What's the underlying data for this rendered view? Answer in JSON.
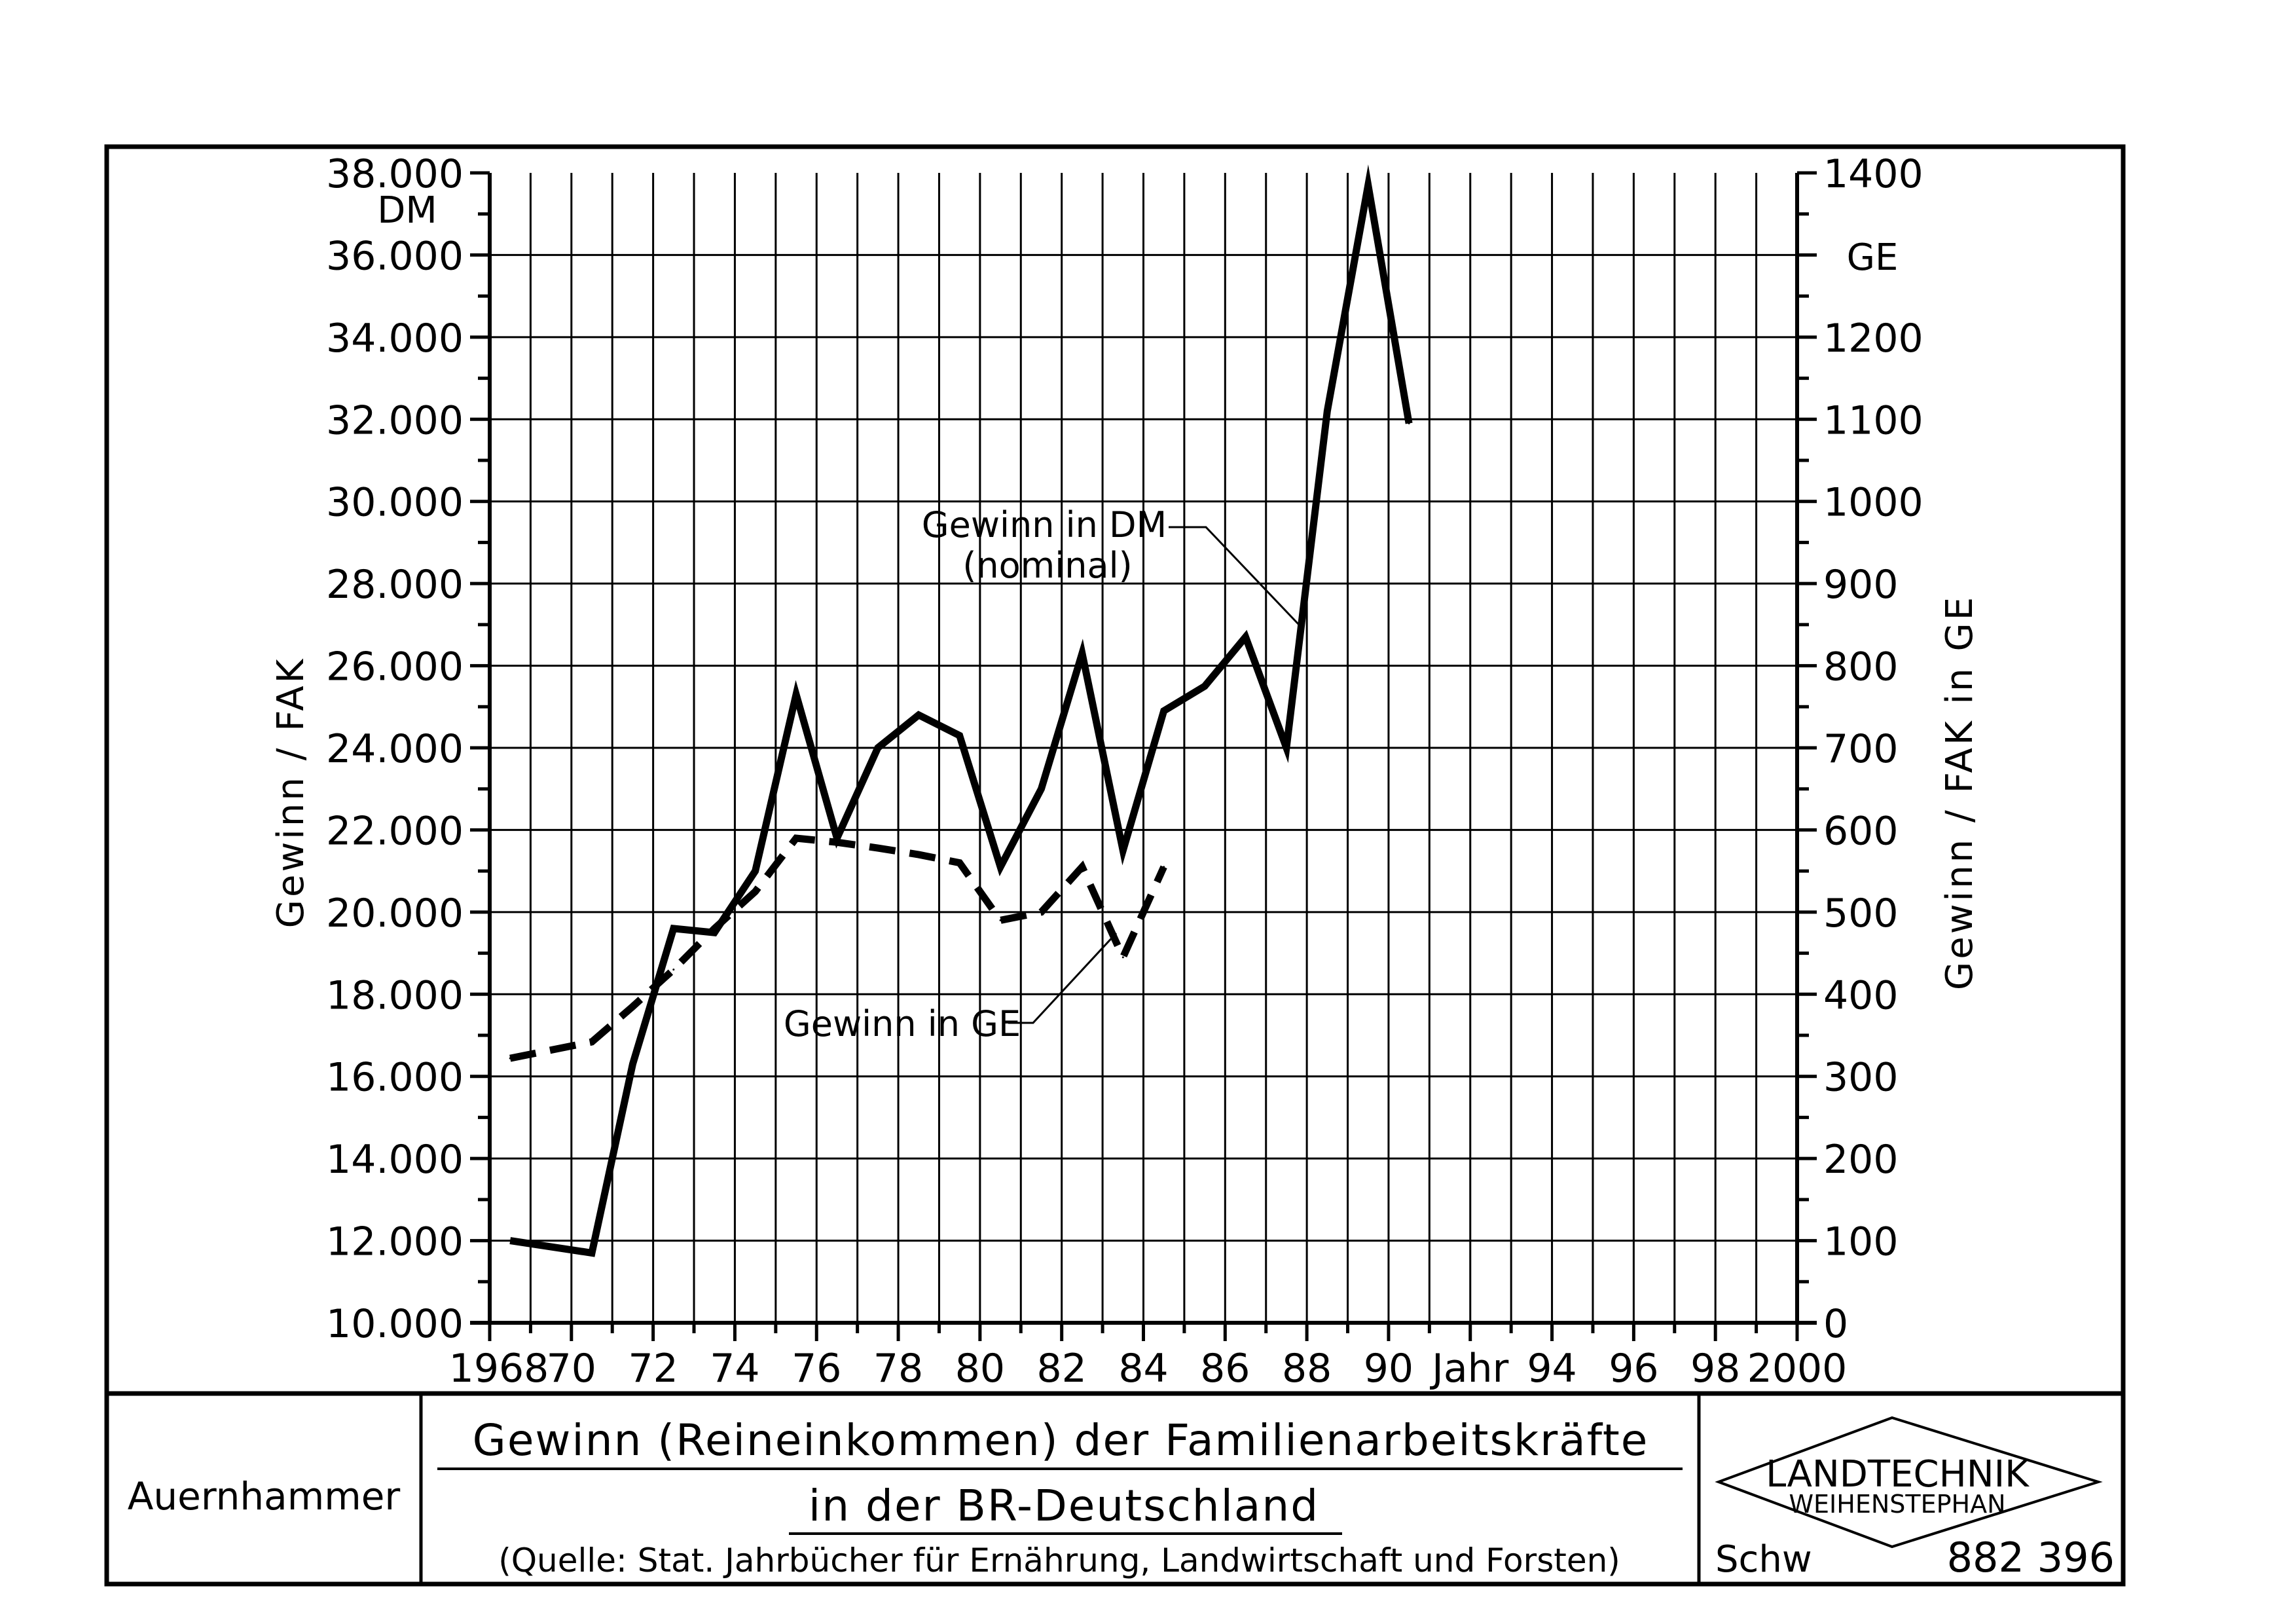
{
  "chart_data": {
    "type": "line",
    "title": "Gewinn (Reineinkommen) der Familienarbeitskräfte",
    "subtitle": "in der BR-Deutschland",
    "source": "(Quelle: Stat. Jahrbücher für Ernährung, Landwirtschaft und Forsten)",
    "xlabel": "Jahr",
    "ylabel": "Gewinn / FAK",
    "ylabel_right": "Gewinn / FAK in GE",
    "y_unit": "DM",
    "y_unit_right": "GE",
    "xlim": [
      1968,
      2000
    ],
    "ylim": [
      10000,
      38000
    ],
    "ylim_right": [
      0,
      1400
    ],
    "grid": true,
    "x_tick_labels": [
      "1968",
      "70",
      "72",
      "74",
      "76",
      "78",
      "80",
      "82",
      "84",
      "86",
      "88",
      "90",
      "Jahr",
      "94",
      "96",
      "98",
      "2000"
    ],
    "y_tick_labels": [
      "10.000",
      "12.000",
      "14.000",
      "16.000",
      "18.000",
      "20.000",
      "22.000",
      "24.000",
      "26.000",
      "28.000",
      "30.000",
      "32.000",
      "34.000",
      "36.000",
      "38.000"
    ],
    "y_tick_labels_right": [
      "0",
      "100",
      "200",
      "300",
      "400",
      "500",
      "600",
      "700",
      "800",
      "900",
      "1000",
      "1100",
      "1200",
      "1300",
      "1400"
    ],
    "series": [
      {
        "name": "Gewinn in DM",
        "name_line2": "(nominal)",
        "axis": "left",
        "style": "solid",
        "x": [
          1968.5,
          1970.5,
          1971.5,
          1972.5,
          1973.5,
          1974.5,
          1975.5,
          1976.5,
          1977.5,
          1978.5,
          1979.5,
          1980.5,
          1981.5,
          1982.5,
          1983.5,
          1984.5,
          1985.5,
          1986.5,
          1987.5,
          1988.5,
          1989.5,
          1990.5
        ],
        "y": [
          12000,
          11700,
          16300,
          19600,
          19500,
          21000,
          25300,
          21800,
          24000,
          24800,
          24300,
          21100,
          23000,
          26300,
          21500,
          24900,
          25500,
          26700,
          24000,
          32200,
          37700,
          31900
        ]
      },
      {
        "name": "Gewinn in GE",
        "axis": "right",
        "style": "dashed",
        "x": [
          1968.5,
          1970.5,
          1971.5,
          1972.5,
          1973.5,
          1974.5,
          1975.5,
          1976.5,
          1977.5,
          1978.5,
          1979.5,
          1980.5,
          1981.5,
          1982.5,
          1983.5,
          1984.5
        ],
        "y": [
          322,
          342,
          385,
          430,
          480,
          525,
          590,
          585,
          578,
          570,
          560,
          490,
          500,
          555,
          445,
          555
        ]
      }
    ]
  },
  "footer": {
    "author": "Auernhammer",
    "logo_line1": "LANDTECHNIK",
    "logo_line2": "WEIHENSTEPHAN",
    "initials": "Schw",
    "number": "882 396"
  },
  "colors": {
    "ink": "#000000",
    "paper": "#ffffff"
  }
}
